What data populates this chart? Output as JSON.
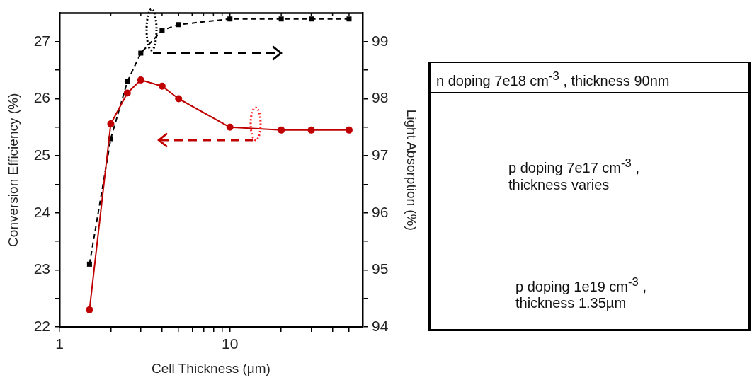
{
  "chart_data": [
    {
      "type": "line",
      "xlabel": "Cell Thickness (μm)",
      "ylabel": "Conversion Efficiency (%)",
      "y2label": "Light Absorption (%)",
      "x": [
        1.5,
        2,
        2.5,
        3,
        4,
        5,
        10,
        20,
        30,
        50
      ],
      "series": [
        {
          "color": "#c00000",
          "marker": "circle",
          "line_style": "solid",
          "values": [
            22.3,
            25.56,
            26.1,
            26.33,
            26.22,
            26.0,
            25.5,
            25.45,
            25.45,
            25.45
          ]
        },
        {
          "color": "#000000",
          "marker": "square",
          "line_style": "dashed",
          "axis": "y2",
          "values": [
            95.1,
            97.3,
            98.3,
            98.8,
            99.2,
            99.3,
            99.4,
            99.4,
            99.4,
            99.4
          ]
        }
      ],
      "log": "x",
      "xlim": [
        1,
        60
      ],
      "xticks": [
        1,
        {
          "value": 2,
          "label": null
        },
        {
          "value": 3,
          "label": null
        },
        {
          "value": 4,
          "label": null
        },
        {
          "value": 5,
          "label": null
        },
        {
          "value": 6,
          "label": null
        },
        {
          "value": 7,
          "label": null
        },
        {
          "value": 8,
          "label": null
        },
        {
          "value": 9,
          "label": null
        },
        10,
        {
          "value": 20,
          "label": null
        },
        {
          "value": 30,
          "label": null
        },
        {
          "value": 40,
          "label": null
        },
        {
          "value": 50,
          "label": null
        }
      ],
      "ylim": [
        22,
        27.5
      ],
      "yticks": [
        22,
        {
          "value": 22.5,
          "label": null
        },
        23,
        {
          "value": 23.5,
          "label": null
        },
        24,
        {
          "value": 24.5,
          "label": null
        },
        25,
        {
          "value": 25.5,
          "label": null
        },
        26,
        {
          "value": 26.5,
          "label": null
        },
        27
      ],
      "y2lim": [
        94,
        99.5
      ],
      "y2ticks": [
        94,
        {
          "value": 94.5,
          "label": null
        },
        95,
        {
          "value": 95.5,
          "label": null
        },
        96,
        {
          "value": 96.5,
          "label": null
        },
        97,
        {
          "value": 97.5,
          "label": null
        },
        98,
        {
          "value": 98.5,
          "label": null
        },
        99
      ],
      "grid": false,
      "legend": false
    },
    {
      "type": "other",
      "annotations": [
        "n doping 7e18 cm$^{-3}$ , thickness 90nm",
        "p doping 7e17 cm$^{-3}$ ,\nthickness varies",
        "p doping 1e19 cm$^{-3}$ ,\nthickness 1.35µm"
      ]
    }
  ]
}
